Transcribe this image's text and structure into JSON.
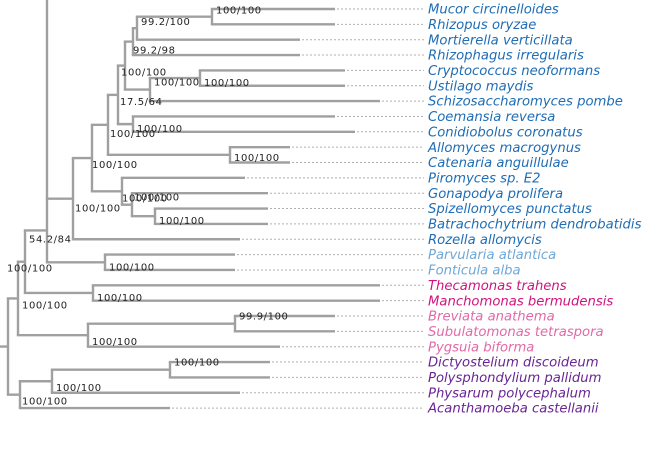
{
  "colors": {
    "branch": "#a0a0a0",
    "guide": "#b0b0b0",
    "fungi": "#1f6db5",
    "fungi_light": "#6fa8d6",
    "magenta": "#d0147f",
    "pink": "#e06aa8",
    "purple": "#6a2595"
  },
  "taxa": [
    {
      "name": "Mucor circinelloides",
      "color": "fungi"
    },
    {
      "name": "Rhizopus oryzae",
      "color": "fungi"
    },
    {
      "name": "Mortierella verticillata",
      "color": "fungi"
    },
    {
      "name": "Rhizophagus irregularis",
      "color": "fungi"
    },
    {
      "name": "Cryptococcus neoformans",
      "color": "fungi"
    },
    {
      "name": "Ustilago maydis",
      "color": "fungi"
    },
    {
      "name": "Schizosaccharomyces pombe",
      "color": "fungi"
    },
    {
      "name": "Coemansia reversa",
      "color": "fungi"
    },
    {
      "name": "Conidiobolus coronatus",
      "color": "fungi"
    },
    {
      "name": "Allomyces macrogynus",
      "color": "fungi"
    },
    {
      "name": "Catenaria anguillulae",
      "color": "fungi"
    },
    {
      "name": "Piromyces sp. E2",
      "color": "fungi"
    },
    {
      "name": "Gonapodya prolifera",
      "color": "fungi"
    },
    {
      "name": "Spizellomyces punctatus",
      "color": "fungi"
    },
    {
      "name": "Batrachochytrium dendrobatidis",
      "color": "fungi"
    },
    {
      "name": "Rozella allomycis",
      "color": "fungi"
    },
    {
      "name": "Parvularia atlantica",
      "color": "fungi_light"
    },
    {
      "name": "Fonticula alba",
      "color": "fungi_light"
    },
    {
      "name": "Thecamonas trahens",
      "color": "magenta"
    },
    {
      "name": "Manchomonas bermudensis",
      "color": "magenta"
    },
    {
      "name": "Breviata anathema",
      "color": "pink"
    },
    {
      "name": "Subulatomonas tetraspora",
      "color": "pink"
    },
    {
      "name": "Pygsuia biforma",
      "color": "pink"
    },
    {
      "name": "Dictyostelium discoideum",
      "color": "purple"
    },
    {
      "name": "Polysphondylium pallidum",
      "color": "purple"
    },
    {
      "name": "Physarum polycephalum",
      "color": "purple"
    },
    {
      "name": "Acanthamoeba castellanii",
      "color": "purple"
    }
  ],
  "support_values": {
    "n01": "100/100",
    "n02": "99.2/100",
    "n03": "99.2/98",
    "n04": "100/100",
    "n05": "100/100",
    "n06": "100/100",
    "n07": "100/100",
    "n08": "17.5/64",
    "n09": "100/100",
    "n10": "100/100",
    "n11": "100/100",
    "n12": "92.8/94",
    "n13": "100/100",
    "n14": "100/100",
    "n15": "100/100",
    "n16": "100/100",
    "n17": "54.2/84",
    "n18": "100/100",
    "n19": "100/100",
    "n20": "100/100",
    "n21": "99.9/100",
    "n22": "100/100",
    "n23": "100/100",
    "n24": "100/100",
    "n25": "100/100",
    "n26": "100/100"
  }
}
